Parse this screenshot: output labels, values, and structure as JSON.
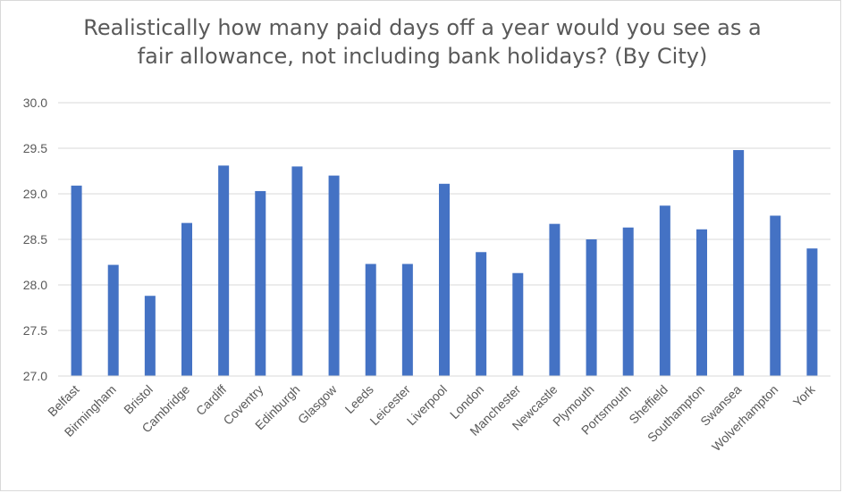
{
  "chart_data": {
    "type": "bar",
    "title_lines": [
      "Realistically how many paid days off a year would you see as a",
      "fair allowance, not including bank holidays? (By City)"
    ],
    "xlabel": "",
    "ylabel": "",
    "ylim": [
      27.0,
      30.0
    ],
    "yticks": [
      "27.0",
      "27.5",
      "28.0",
      "28.5",
      "29.0",
      "29.5",
      "30.0"
    ],
    "categories": [
      "Belfast",
      "Birmingham",
      "Bristol",
      "Cambridge",
      "Cardiff",
      "Coventry",
      "Edinburgh",
      "Glasgow",
      "Leeds",
      "Leicester",
      "Liverpool",
      "London",
      "Manchester",
      "Newcastle",
      "Plymouth",
      "Portsmouth",
      "Sheffield",
      "Southampton",
      "Swansea",
      "Wolverhampton",
      "York"
    ],
    "values": [
      29.09,
      28.22,
      27.88,
      28.68,
      29.31,
      29.03,
      29.3,
      29.2,
      28.23,
      28.23,
      29.11,
      28.36,
      28.13,
      28.67,
      28.5,
      28.63,
      28.87,
      28.61,
      29.48,
      28.76,
      28.4
    ],
    "grid": true,
    "legend": "none",
    "bar_color": "#4472c4",
    "grid_color": "#d9d9d9"
  }
}
